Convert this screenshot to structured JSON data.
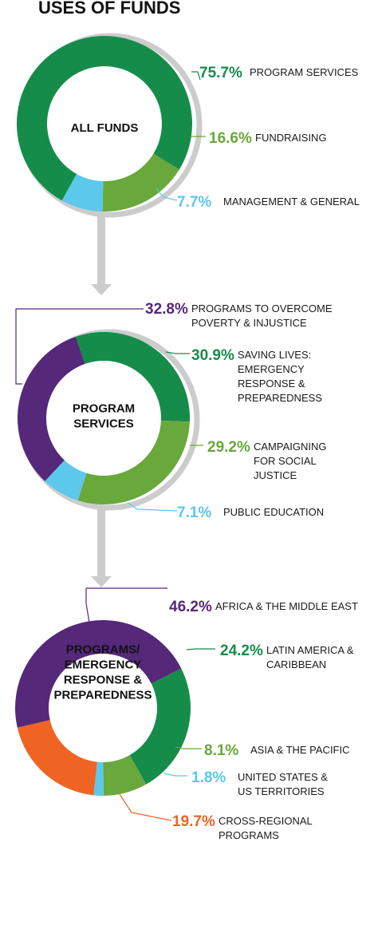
{
  "title": "USES OF FUNDS",
  "colors": {
    "green": "#168c4b",
    "light_green": "#69a83a",
    "sky": "#5bc8ec",
    "purple": "#55287a",
    "orange": "#ef6423",
    "gray": "#cccccc"
  },
  "chart_data": [
    {
      "type": "pie",
      "center_label": [
        "ALL FUNDS"
      ],
      "series": [
        {
          "values": [
            75.7,
            16.6,
            7.7
          ],
          "labels": [
            "75.7%",
            "16.6%",
            "7.7%"
          ],
          "categories": [
            [
              "PROGRAM SERVICES"
            ],
            [
              "FUNDRAISING"
            ],
            [
              "MANAGEMENT & GENERAL"
            ]
          ],
          "colors": [
            "green",
            "light_green",
            "sky"
          ]
        }
      ]
    },
    {
      "type": "pie",
      "center_label": [
        "PROGRAM",
        "SERVICES"
      ],
      "series": [
        {
          "values": [
            32.8,
            30.9,
            29.2,
            7.1
          ],
          "labels": [
            "32.8%",
            "30.9%",
            "29.2%",
            "7.1%"
          ],
          "categories": [
            [
              "PROGRAMS TO OVERCOME",
              "POVERTY & INJUSTICE"
            ],
            [
              "SAVING LIVES:",
              "EMERGENCY",
              "RESPONSE &",
              "PREPAREDNESS"
            ],
            [
              "CAMPAIGNING",
              "FOR SOCIAL",
              "JUSTICE"
            ],
            [
              "PUBLIC EDUCATION"
            ]
          ],
          "colors": [
            "purple",
            "green",
            "light_green",
            "sky"
          ]
        }
      ]
    },
    {
      "type": "pie",
      "center_label": [
        "PROGRAMS/",
        "EMERGENCY",
        "RESPONSE &",
        "PREPAREDNESS"
      ],
      "series": [
        {
          "values": [
            46.2,
            24.2,
            8.1,
            1.8,
            19.7
          ],
          "labels": [
            "46.2%",
            "24.2%",
            "8.1%",
            "1.8%",
            "19.7%"
          ],
          "categories": [
            [
              "AFRICA & THE MIDDLE EAST"
            ],
            [
              "LATIN AMERICA &",
              "CARIBBEAN"
            ],
            [
              "ASIA & THE PACIFIC"
            ],
            [
              "UNITED STATES &",
              "US TERRITORIES"
            ],
            [
              "CROSS-REGIONAL",
              "PROGRAMS"
            ]
          ],
          "colors": [
            "purple",
            "green",
            "light_green",
            "sky",
            "orange"
          ]
        }
      ]
    }
  ]
}
